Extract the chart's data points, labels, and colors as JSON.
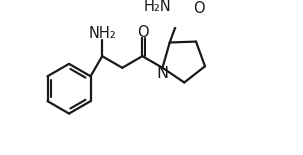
{
  "bg_color": "#ffffff",
  "line_color": "#1a1a1a",
  "line_width": 1.6,
  "font_size": 10.5,
  "atoms": {
    "NH2_label": "NH₂",
    "O_ketone": "O",
    "N_pyrr": "N",
    "H2N_amide": "H₂N",
    "O_amide": "O"
  }
}
